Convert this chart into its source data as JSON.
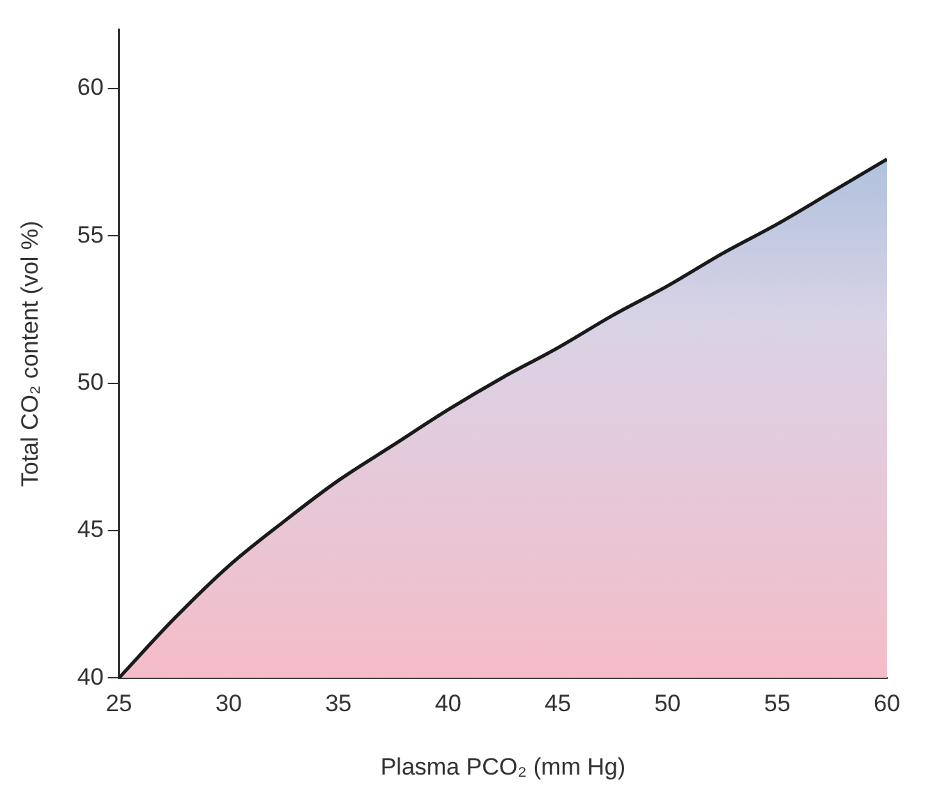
{
  "chart_data": {
    "type": "area",
    "xlabel": "Plasma PCO₂ (mm Hg)",
    "ylabel": "Total CO₂ content (vol %)",
    "x": [
      25,
      27.5,
      30,
      32.5,
      35,
      37.5,
      40,
      42.5,
      45,
      47.5,
      50,
      52.5,
      55,
      57.5,
      60
    ],
    "series": [
      {
        "color": "#1a1a1a",
        "values": [
          40,
          42.0,
          43.8,
          45.3,
          46.7,
          47.9,
          49.1,
          50.2,
          51.2,
          52.3,
          53.3,
          54.4,
          55.4,
          56.5,
          57.6
        ]
      }
    ],
    "xlim": [
      25,
      60
    ],
    "xticks": [
      25,
      30,
      35,
      40,
      45,
      50,
      55,
      60
    ],
    "ylim": [
      40,
      62
    ],
    "yticks": [
      40,
      45,
      50,
      55,
      60
    ],
    "grid": false,
    "legend": false
  }
}
